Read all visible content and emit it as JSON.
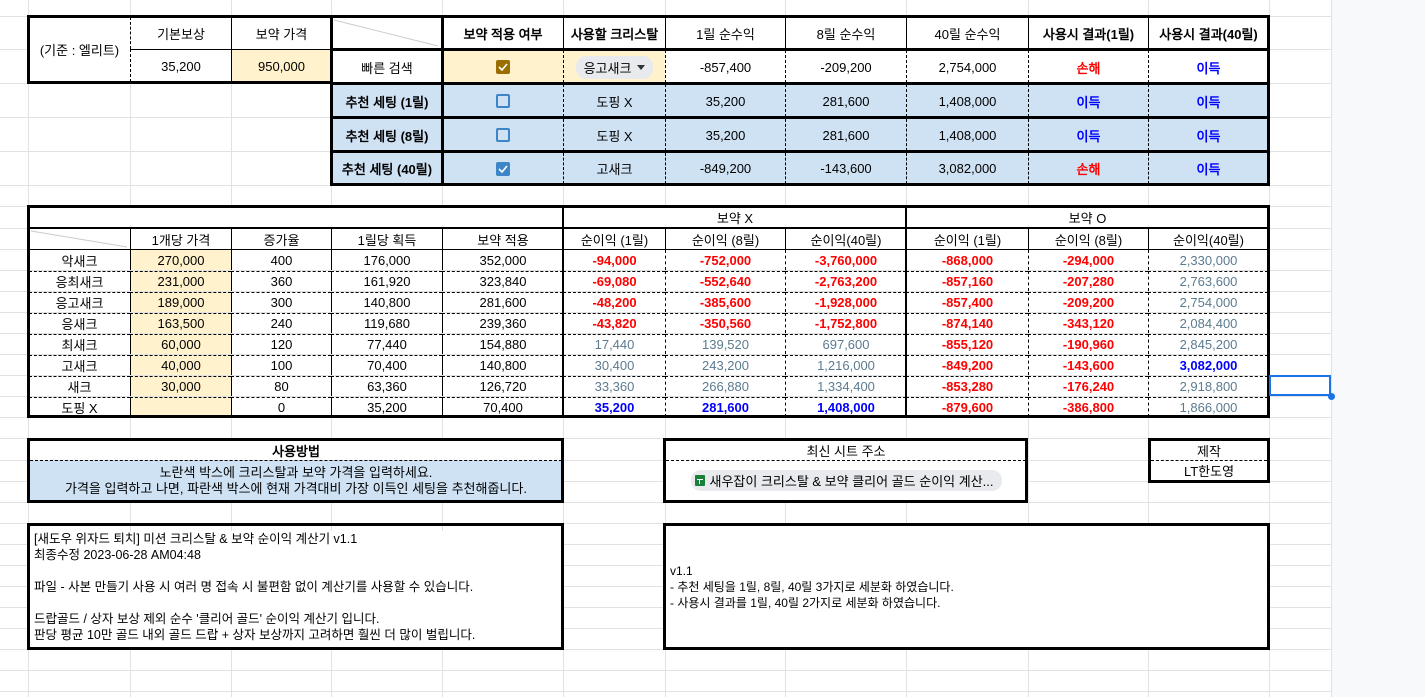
{
  "top_panel": {
    "basis_label": "(기준 : 엘리트)",
    "base_reward_header": "기본보상",
    "base_reward_value": "35,200",
    "potion_price_header": "보약 가격",
    "potion_price_value": "950,000",
    "columns": [
      "보약 적용 여부",
      "사용할 크리스탈",
      "1릴 순수익",
      "8릴 순수익",
      "40릴 순수익",
      "사용시 결과(1릴)",
      "사용시 결과(40릴)"
    ],
    "rows": [
      {
        "label": "빠른 검색",
        "checked": true,
        "crystal": "응고새크",
        "dropdown": true,
        "p1": "-857,400",
        "p8": "-209,200",
        "p40": "2,754,000",
        "r1": "손해",
        "r40": "이득"
      },
      {
        "label": "추천 세팅 (1릴)",
        "checked": false,
        "crystal": "도핑 X",
        "dropdown": false,
        "p1": "35,200",
        "p8": "281,600",
        "p40": "1,408,000",
        "r1": "이득",
        "r40": "이득"
      },
      {
        "label": "추천 세팅 (8릴)",
        "checked": false,
        "crystal": "도핑 X",
        "dropdown": false,
        "p1": "35,200",
        "p8": "281,600",
        "p40": "1,408,000",
        "r1": "이득",
        "r40": "이득"
      },
      {
        "label": "추천 세팅 (40릴)",
        "checked": true,
        "crystal": "고새크",
        "dropdown": false,
        "p1": "-849,200",
        "p8": "-143,600",
        "p40": "3,082,000",
        "r1": "손해",
        "r40": "이득"
      }
    ]
  },
  "main_table": {
    "group_headers": {
      "no_potion": "보약 X",
      "with_potion": "보약 O"
    },
    "columns": [
      "1개당 가격",
      "증가율",
      "1릴당 획득",
      "보약 적용",
      "순이익 (1릴)",
      "순이익 (8릴)",
      "순이익(40릴)",
      "순이익 (1릴)",
      "순이익 (8릴)",
      "순이익(40릴)"
    ],
    "rows": [
      {
        "name": "악새크",
        "price": "270,000",
        "rate": "400",
        "per_reel": "176,000",
        "potion": "352,000",
        "x1": "-94,000",
        "x8": "-752,000",
        "x40": "-3,760,000",
        "o1": "-868,000",
        "o8": "-294,000",
        "o40": "2,330,000"
      },
      {
        "name": "응최새크",
        "price": "231,000",
        "rate": "360",
        "per_reel": "161,920",
        "potion": "323,840",
        "x1": "-69,080",
        "x8": "-552,640",
        "x40": "-2,763,200",
        "o1": "-857,160",
        "o8": "-207,280",
        "o40": "2,763,600"
      },
      {
        "name": "응고새크",
        "price": "189,000",
        "rate": "300",
        "per_reel": "140,800",
        "potion": "281,600",
        "x1": "-48,200",
        "x8": "-385,600",
        "x40": "-1,928,000",
        "o1": "-857,400",
        "o8": "-209,200",
        "o40": "2,754,000"
      },
      {
        "name": "응새크",
        "price": "163,500",
        "rate": "240",
        "per_reel": "119,680",
        "potion": "239,360",
        "x1": "-43,820",
        "x8": "-350,560",
        "x40": "-1,752,800",
        "o1": "-874,140",
        "o8": "-343,120",
        "o40": "2,084,400"
      },
      {
        "name": "최새크",
        "price": "60,000",
        "rate": "120",
        "per_reel": "77,440",
        "potion": "154,880",
        "x1": "17,440",
        "x8": "139,520",
        "x40": "697,600",
        "o1": "-855,120",
        "o8": "-190,960",
        "o40": "2,845,200"
      },
      {
        "name": "고새크",
        "price": "40,000",
        "rate": "100",
        "per_reel": "70,400",
        "potion": "140,800",
        "x1": "30,400",
        "x8": "243,200",
        "x40": "1,216,000",
        "o1": "-849,200",
        "o8": "-143,600",
        "o40": "3,082,000"
      },
      {
        "name": "새크",
        "price": "30,000",
        "rate": "80",
        "per_reel": "63,360",
        "potion": "126,720",
        "x1": "33,360",
        "x8": "266,880",
        "x40": "1,334,400",
        "o1": "-853,280",
        "o8": "-176,240",
        "o40": "2,918,800"
      },
      {
        "name": "도핑 X",
        "price": "",
        "rate": "0",
        "per_reel": "35,200",
        "potion": "70,400",
        "x1": "35,200",
        "x8": "281,600",
        "x40": "1,408,000",
        "o1": "-879,600",
        "o8": "-386,800",
        "o40": "1,866,000"
      }
    ]
  },
  "usage_box": {
    "title": "사용방법",
    "line1": "노란색 박스에 크리스탈과 보약 가격을 입력하세요.",
    "line2": "가격을 입력하고 나면, 파란색 박스에 현재 가격대비 가장 이득인 세팅을 추천해줍니다."
  },
  "sheet_link_box": {
    "title": "최신 시트 주소",
    "link_text": "새우잡이 크리스탈 & 보약 클리어 골드 순이익 계산..."
  },
  "maker_box": {
    "title": "제작",
    "name": "LT한도영"
  },
  "info_box": {
    "text": "[새도우 위자드 퇴치] 미션 크리스탈 & 보약 순이익 계산기 v1.1\n최종수정 2023-06-28 AM04:48\n\n파일 - 사본 만들기 사용 시 여러 명 접속 시 불편함 없이 계산기를 사용할 수 있습니다.\n\n드랍골드 / 상자 보상 제외 순수 '클리어 골드' 순이익 계산기 입니다.\n판당 평균 10만 골드 내외 골드 드랍 + 상자 보상까지 고려하면 훨씬 더 많이 벌립니다."
  },
  "changelog_box": {
    "text": "v1.1\n- 추천 세팅을 1릴, 8릴, 40릴 3가지로 세분화 하였습니다.\n- 사용시 결과를 1릴, 40릴 2가지로 세분화 하였습니다."
  },
  "colors": {
    "yellow_input": "#fff2cc",
    "blue_recommend": "#cfe2f3",
    "loss_red": "#ff0000",
    "gain_blue": "#0000ff",
    "neutral_gray": "#5b7b8f",
    "selection": "#1a73e8"
  }
}
